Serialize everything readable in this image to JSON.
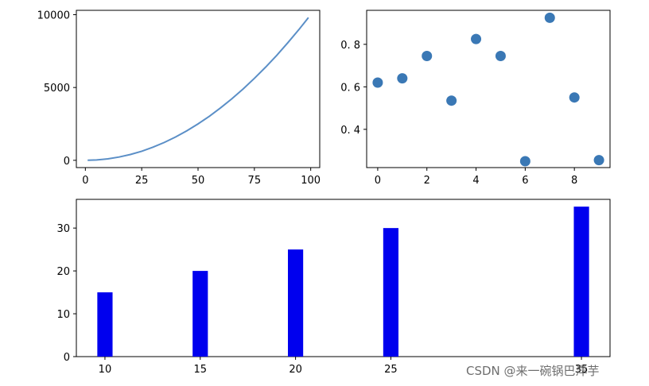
{
  "chart_data": [
    {
      "type": "line",
      "title": "",
      "xlabel": "",
      "ylabel": "",
      "xlim": [
        -4,
        104
      ],
      "ylim": [
        -500,
        10300
      ],
      "xticks": [
        0,
        25,
        50,
        75,
        100
      ],
      "yticks": [
        0,
        5000,
        10000
      ],
      "color": "#5b8fc7",
      "series": [
        {
          "x": [
            1,
            5,
            10,
            15,
            20,
            25,
            30,
            35,
            40,
            45,
            50,
            55,
            60,
            65,
            70,
            75,
            80,
            85,
            90,
            95,
            99
          ],
          "y": [
            1,
            25,
            100,
            225,
            400,
            625,
            900,
            1225,
            1600,
            2025,
            2500,
            3025,
            3600,
            4225,
            4900,
            5625,
            6400,
            7225,
            8100,
            9025,
            9801
          ]
        }
      ]
    },
    {
      "type": "scatter",
      "title": "",
      "xlabel": "",
      "ylabel": "",
      "xlim": [
        -0.45,
        9.45
      ],
      "ylim": [
        0.22,
        0.96
      ],
      "xticks": [
        0,
        2,
        4,
        6,
        8
      ],
      "yticks": [
        0.4,
        0.6,
        0.8
      ],
      "ytick_labels": [
        "0. 4",
        "0. 6",
        "0. 8"
      ],
      "color": "#3a78b5",
      "series": [
        {
          "x": [
            0,
            1,
            2,
            3,
            4,
            5,
            6,
            7,
            8,
            9
          ],
          "y": [
            0.62,
            0.64,
            0.745,
            0.535,
            0.825,
            0.745,
            0.25,
            0.925,
            0.55,
            0.255
          ]
        }
      ]
    },
    {
      "type": "bar",
      "title": "",
      "xlabel": "",
      "ylabel": "",
      "xlim": [
        8.5,
        36.5
      ],
      "ylim": [
        0,
        36.7
      ],
      "xticks": [
        10,
        15,
        20,
        25,
        35
      ],
      "xtick_labels": [
        "10",
        "15",
        "20",
        "25",
        "35"
      ],
      "yticks": [
        0,
        10,
        20,
        30
      ],
      "bar_width": 0.8,
      "color": "#0000ee",
      "categories": [
        10,
        15,
        20,
        25,
        35
      ],
      "values": [
        15,
        20,
        25,
        30,
        35
      ]
    }
  ],
  "watermark": "CSDN @来一碗锅巴洋芋"
}
